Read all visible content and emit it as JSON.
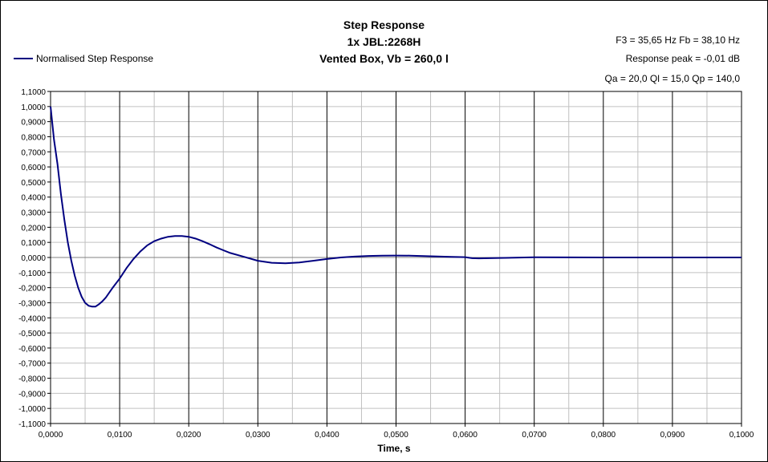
{
  "title_lines": [
    "Step Response",
    "1x JBL:2268H",
    "Vented Box, Vb = 260,0 l"
  ],
  "info_lines": [
    "F3 = 35,65 Hz  Fb = 38,10 Hz",
    "Response peak = -0,01 dB",
    "Qa = 20,0  Ql = 15,0  Qp = 140,0"
  ],
  "legend_label": "Normalised Step Response",
  "colors": {
    "series": "#000080",
    "grid": "#000000",
    "minor_grid": "#c0c0c0"
  },
  "chart_data": {
    "type": "line",
    "title": "Step Response",
    "xlabel": "Time, s",
    "ylabel": "",
    "xlim": [
      0,
      0.1
    ],
    "ylim": [
      -1.1,
      1.1
    ],
    "grid": true,
    "legend_position": "top-left",
    "x_ticks": [
      "0,0000",
      "0,0100",
      "0,0200",
      "0,0300",
      "0,0400",
      "0,0500",
      "0,0600",
      "0,0700",
      "0,0800",
      "0,0900",
      "0,1000"
    ],
    "y_ticks": [
      "1,1000",
      "1,0000",
      "0,9000",
      "0,8000",
      "0,7000",
      "0,6000",
      "0,5000",
      "0,4000",
      "0,3000",
      "0,2000",
      "0,1000",
      "0,0000",
      "-0,1000",
      "-0,2000",
      "-0,3000",
      "-0,4000",
      "-0,5000",
      "-0,6000",
      "-0,7000",
      "-0,8000",
      "-0,9000",
      "-1,0000",
      "-1,1000"
    ],
    "series": [
      {
        "name": "Normalised Step Response",
        "x": [
          0,
          0.0005,
          0.001,
          0.0015,
          0.002,
          0.0025,
          0.003,
          0.0035,
          0.004,
          0.0045,
          0.005,
          0.0055,
          0.006,
          0.0065,
          0.007,
          0.0075,
          0.008,
          0.009,
          0.01,
          0.011,
          0.012,
          0.013,
          0.014,
          0.015,
          0.016,
          0.017,
          0.018,
          0.019,
          0.02,
          0.021,
          0.022,
          0.023,
          0.024,
          0.025,
          0.026,
          0.028,
          0.03,
          0.032,
          0.034,
          0.036,
          0.038,
          0.04,
          0.042,
          0.044,
          0.046,
          0.048,
          0.05,
          0.052,
          0.055,
          0.058,
          0.06,
          0.061,
          0.062,
          0.065,
          0.07,
          0.08,
          0.09,
          0.1
        ],
        "values": [
          1.0,
          0.78,
          0.62,
          0.42,
          0.25,
          0.1,
          -0.02,
          -0.12,
          -0.2,
          -0.26,
          -0.3,
          -0.32,
          -0.325,
          -0.325,
          -0.31,
          -0.29,
          -0.265,
          -0.2,
          -0.14,
          -0.07,
          -0.01,
          0.04,
          0.08,
          0.108,
          0.125,
          0.137,
          0.142,
          0.142,
          0.137,
          0.125,
          0.108,
          0.088,
          0.067,
          0.048,
          0.03,
          0.004,
          -0.022,
          -0.035,
          -0.039,
          -0.033,
          -0.022,
          -0.01,
          0.0,
          0.006,
          0.01,
          0.012,
          0.013,
          0.012,
          0.008,
          0.004,
          0.002,
          -0.005,
          -0.006,
          -0.003,
          0.001,
          0.0,
          0.0,
          0.0
        ]
      }
    ]
  }
}
